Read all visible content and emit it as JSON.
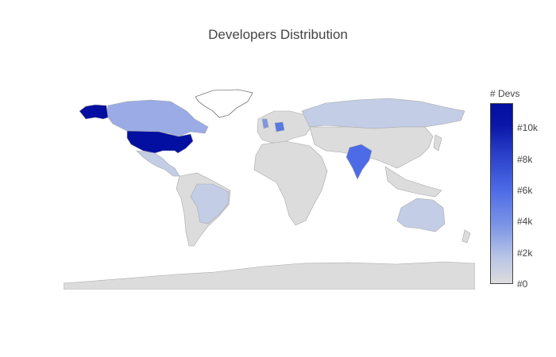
{
  "title": "Developers Distribution",
  "colorbar": {
    "title": "# Devs",
    "min": 0,
    "max": 11600,
    "ticks": [
      {
        "value": 0,
        "label": "#0"
      },
      {
        "value": 2000,
        "label": "#2k"
      },
      {
        "value": 4000,
        "label": "#4k"
      },
      {
        "value": 6000,
        "label": "#6k"
      },
      {
        "value": 8000,
        "label": "#8k"
      },
      {
        "value": 10000,
        "label": "#10k"
      }
    ],
    "colors": {
      "none": "#dcdcdc",
      "low": "#bac6e6",
      "mid": "#4d6be6",
      "high": "#020fa0",
      "border": "#a8a8a8",
      "no_data": "#ffffff"
    }
  },
  "regions": [
    {
      "name": "United States",
      "level": "highest"
    },
    {
      "name": "Alaska",
      "level": "highest"
    },
    {
      "name": "India",
      "level": "high"
    },
    {
      "name": "Germany",
      "level": "medium"
    },
    {
      "name": "Canada",
      "level": "low-medium"
    },
    {
      "name": "United Kingdom",
      "level": "low-medium"
    },
    {
      "name": "Brazil",
      "level": "low"
    },
    {
      "name": "Russia",
      "level": "low"
    },
    {
      "name": "Australia",
      "level": "low"
    },
    {
      "name": "Greenland",
      "level": "no data"
    }
  ]
}
